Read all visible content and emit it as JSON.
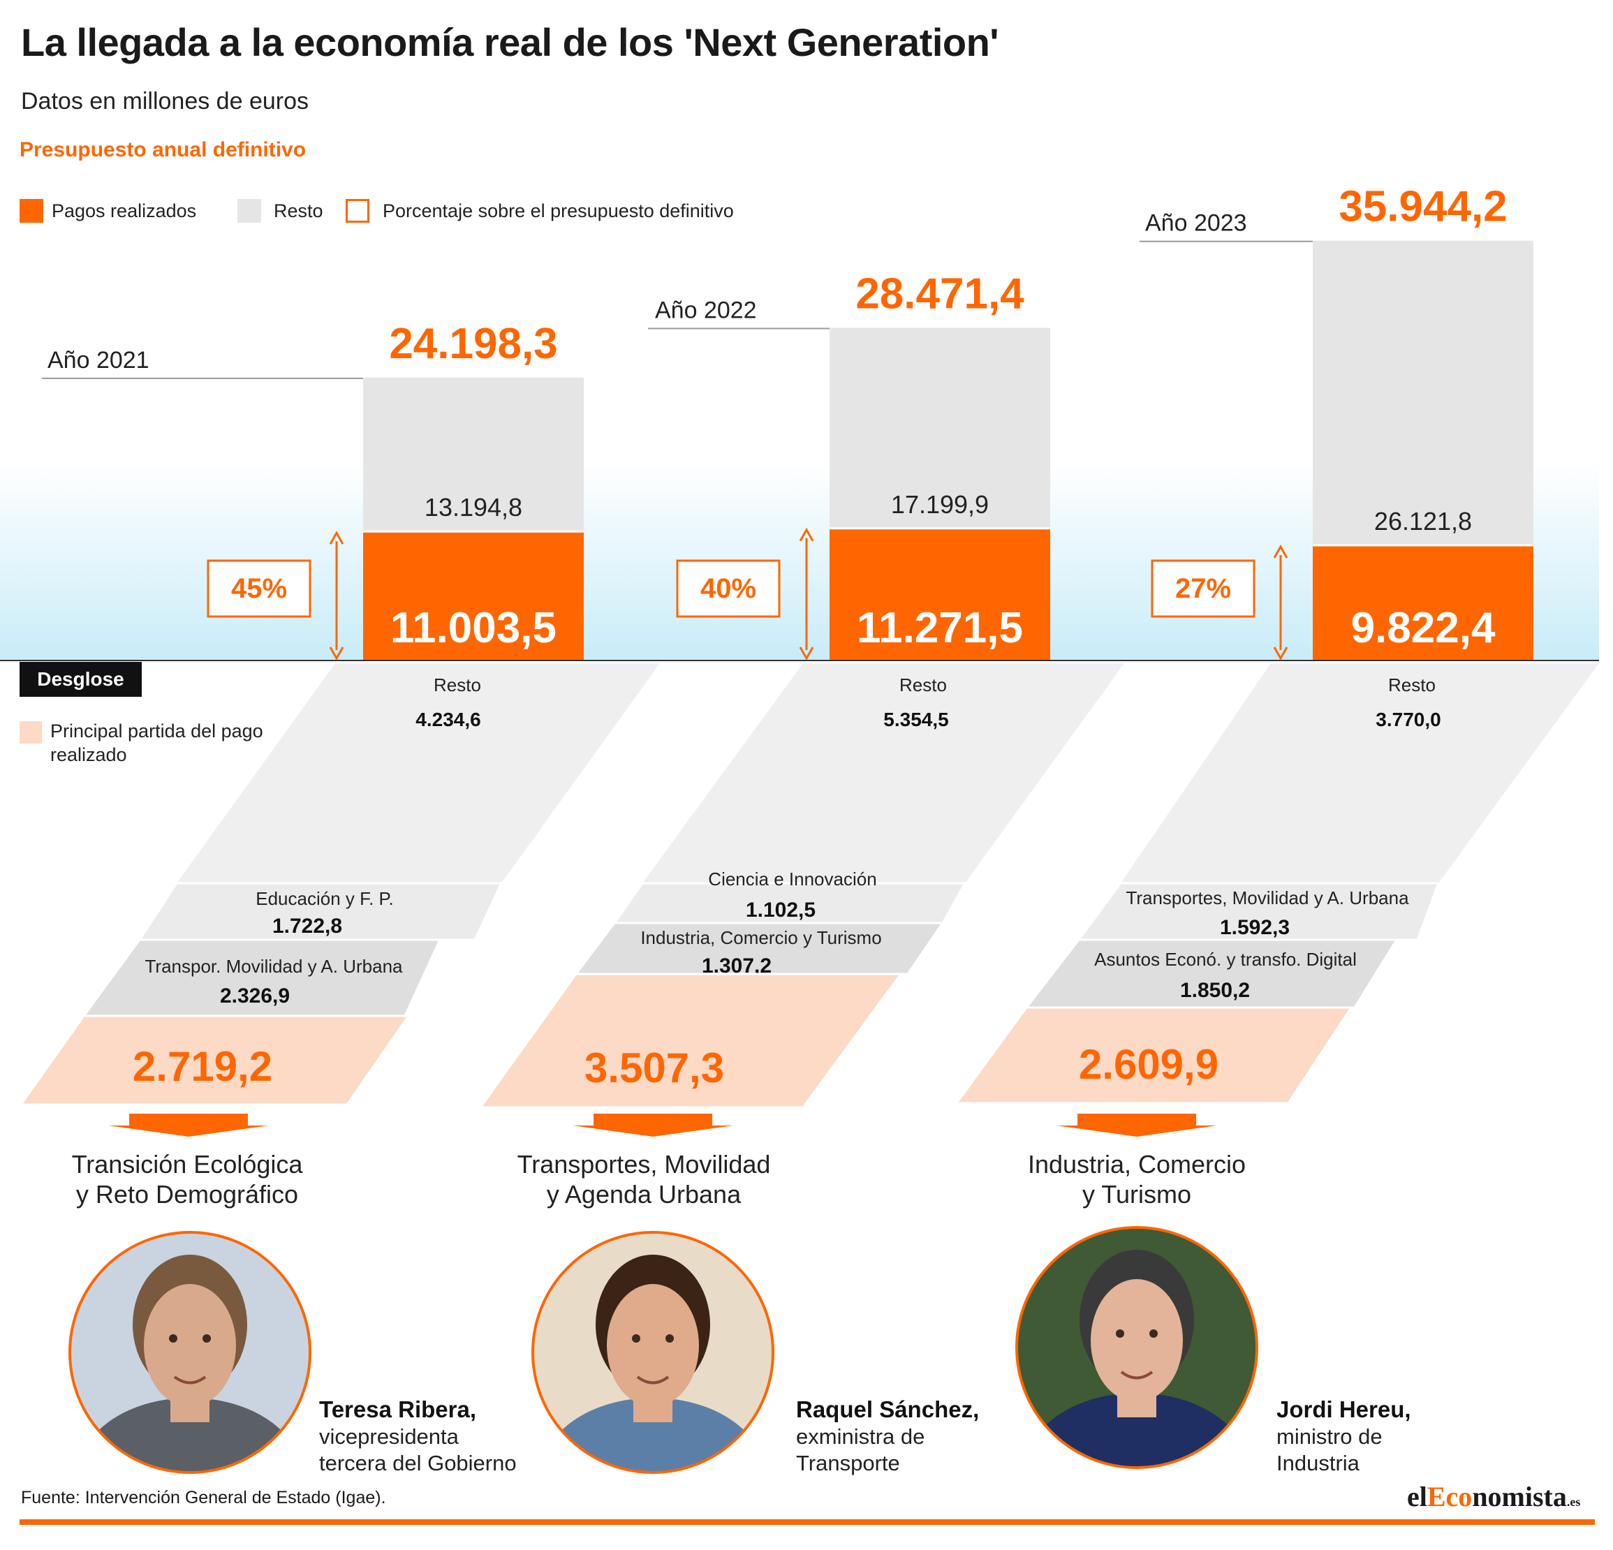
{
  "title": "La llegada a la economía real de los 'Next Generation'",
  "subtitle": "Datos en millones de euros",
  "section_title": "Presupuesto anual definitivo",
  "legend": {
    "paid": "Pagos realizados",
    "rest": "Resto",
    "pct": "Porcentaje sobre el presupuesto definitivo"
  },
  "colors": {
    "accent": "#ff6600",
    "rest": "#e5e5e5",
    "highlight": "#fcdac6",
    "band": "#ebebeb",
    "band_dark": "#dedede"
  },
  "desglose": {
    "tag": "Desglose",
    "legend": "Principal partida del pago realizado"
  },
  "chart_data": {
    "type": "bar",
    "categories": [
      "Año 2021",
      "Año 2022",
      "Año 2023"
    ],
    "totals": [
      "24.198,3",
      "28.471,4",
      "35.944,2"
    ],
    "series": [
      {
        "name": "Pagos realizados",
        "values": [
          11003.5,
          11271.5,
          9822.4
        ],
        "labels": [
          "11.003,5",
          "11.271,5",
          "9.822,4"
        ]
      },
      {
        "name": "Resto",
        "values": [
          13194.8,
          17199.9,
          26121.8
        ],
        "labels": [
          "13.194,8",
          "17.199,9",
          "26.121,8"
        ]
      }
    ],
    "percentages": [
      "45%",
      "40%",
      "27%"
    ]
  },
  "breakdown": [
    {
      "rest_label": "Resto",
      "rest_value": "4.234,6",
      "items": [
        {
          "label": "Educación y F. P.",
          "value": "1.722,8"
        },
        {
          "label": "Transpor. Movilidad y A. Urbana",
          "value": "2.326,9"
        }
      ],
      "main_value": "2.719,2",
      "main_label_1": "Transición Ecológica",
      "main_label_2": "y Reto Demográfico",
      "person_name": "Teresa Ribera,",
      "person_role_1": "vicepresidenta",
      "person_role_2": "tercera del Gobierno"
    },
    {
      "rest_label": "Resto",
      "rest_value": "5.354,5",
      "items": [
        {
          "label": "Ciencia e Innovación",
          "value": "1.102,5"
        },
        {
          "label": "Industria, Comercio y Turismo",
          "value": "1.307,2"
        }
      ],
      "main_value": "3.507,3",
      "main_label_1": "Transportes, Movilidad",
      "main_label_2": "y Agenda Urbana",
      "person_name": "Raquel Sánchez,",
      "person_role_1": "exministra de",
      "person_role_2": "Transporte"
    },
    {
      "rest_label": "Resto",
      "rest_value": "3.770,0",
      "items": [
        {
          "label": "Transportes, Movilidad y A. Urbana",
          "value": "1.592,3"
        },
        {
          "label": "Asuntos Econó. y transfo. Digital",
          "value": "1.850,2"
        }
      ],
      "main_value": "2.609,9",
      "main_label_1": "Industria, Comercio",
      "main_label_2": "y Turismo",
      "person_name": "Jordi Hereu,",
      "person_role_1": "ministro de",
      "person_role_2": "Industria"
    }
  ],
  "source": "Fuente: Intervención General de Estado (Igae).",
  "logo": {
    "prefix": "el",
    "accent": "Eco",
    "rest": "nomista",
    "suffix": ".es"
  }
}
